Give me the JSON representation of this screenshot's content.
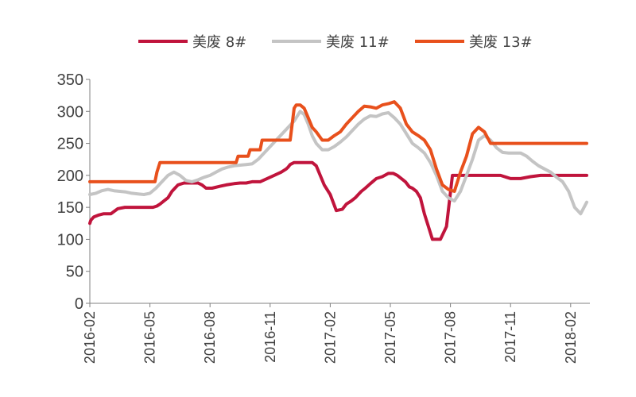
{
  "chart_data": {
    "type": "line",
    "title": "",
    "xlabel": "",
    "ylabel": "",
    "ylim": [
      0,
      350
    ],
    "yticks": [
      0,
      50,
      100,
      150,
      200,
      250,
      300,
      350
    ],
    "xticks": [
      "2016-02",
      "2016-05",
      "2016-08",
      "2016-11",
      "2017-02",
      "2017-05",
      "2017-08",
      "2017-11",
      "2018-02"
    ],
    "grid": false,
    "legend_position": "top",
    "series": [
      {
        "name": "美废 8#",
        "color": "#c0143c",
        "x": [
          0,
          0.05,
          0.2,
          0.45,
          0.7,
          1.05,
          1.4,
          1.75,
          2.1,
          2.45,
          2.8,
          3.15,
          3.35,
          3.5,
          3.7,
          3.9,
          4.1,
          4.4,
          4.7,
          5.1,
          5.4,
          5.6,
          5.8,
          6.1,
          6.5,
          6.8,
          7.2,
          7.5,
          7.8,
          8.1,
          8.5,
          8.85,
          9.2,
          9.55,
          9.8,
          9.9,
          10.0,
          10.2,
          10.5,
          10.8,
          11.1,
          11.3,
          11.5,
          11.7,
          12.0,
          12.3,
          12.6,
          12.8,
          13.05,
          13.25,
          13.4,
          13.55,
          13.75,
          14.0,
          14.3,
          14.6,
          14.9,
          15.15,
          15.35,
          15.55,
          15.75,
          15.95,
          16.1,
          16.3,
          16.5,
          16.7,
          16.9,
          17.1,
          17.3,
          17.5,
          17.8,
          18.1,
          18.5,
          18.9,
          19.3,
          19.7,
          20.0,
          20.5,
          21.0,
          21.5,
          22.0,
          22.5,
          23.0,
          23.5,
          24.0,
          24.5,
          24.8
        ],
        "y": [
          125,
          130,
          135,
          138,
          140,
          140,
          148,
          150,
          150,
          150,
          150,
          150,
          152,
          155,
          160,
          165,
          175,
          185,
          188,
          188,
          188,
          185,
          180,
          180,
          183,
          185,
          187,
          188,
          188,
          190,
          190,
          195,
          200,
          205,
          210,
          213,
          217,
          220,
          220,
          220,
          220,
          215,
          200,
          185,
          170,
          145,
          147,
          155,
          160,
          165,
          170,
          175,
          180,
          187,
          195,
          198,
          203,
          203,
          200,
          195,
          190,
          182,
          180,
          175,
          165,
          140,
          120,
          100,
          100,
          100,
          120,
          200,
          200,
          200,
          200,
          200,
          200,
          200,
          195,
          195,
          198,
          200,
          200,
          200,
          200,
          200,
          200
        ]
      },
      {
        "name": "美废 11#",
        "color": "#c4c4c4",
        "x": [
          0,
          0.3,
          0.6,
          0.9,
          1.2,
          1.5,
          1.8,
          2.1,
          2.4,
          2.7,
          3.0,
          3.3,
          3.6,
          3.9,
          4.2,
          4.5,
          4.8,
          5.1,
          5.4,
          5.7,
          6.0,
          6.3,
          6.6,
          6.9,
          7.2,
          7.5,
          7.8,
          8.1,
          8.4,
          8.7,
          9.0,
          9.3,
          9.6,
          9.9,
          10.2,
          10.5,
          10.7,
          10.9,
          11.1,
          11.3,
          11.6,
          11.9,
          12.2,
          12.5,
          12.8,
          13.1,
          13.4,
          13.7,
          14.0,
          14.3,
          14.6,
          14.9,
          15.2,
          15.5,
          15.8,
          16.1,
          16.4,
          16.7,
          17.0,
          17.3,
          17.6,
          17.9,
          18.2,
          18.5,
          18.8,
          19.1,
          19.4,
          19.7,
          20.0,
          20.3,
          20.6,
          20.9,
          21.2,
          21.5,
          21.8,
          22.1,
          22.4,
          22.7,
          23.0,
          23.3,
          23.6,
          23.9,
          24.2,
          24.5,
          24.8
        ],
        "y": [
          170,
          172,
          176,
          178,
          176,
          175,
          174,
          172,
          171,
          170,
          172,
          180,
          190,
          200,
          205,
          200,
          192,
          190,
          193,
          197,
          200,
          205,
          210,
          213,
          215,
          216,
          217,
          218,
          225,
          235,
          245,
          255,
          265,
          275,
          285,
          300,
          295,
          280,
          262,
          250,
          240,
          240,
          245,
          252,
          260,
          270,
          280,
          288,
          293,
          292,
          296,
          298,
          290,
          280,
          265,
          250,
          243,
          235,
          220,
          200,
          175,
          165,
          160,
          175,
          200,
          225,
          255,
          262,
          255,
          243,
          236,
          235,
          235,
          235,
          230,
          222,
          215,
          210,
          205,
          197,
          190,
          175,
          150,
          140,
          158
        ]
      },
      {
        "name": "美废 13#",
        "color": "#e8501c",
        "x": [
          0,
          3.25,
          3.35,
          3.5,
          4.5,
          5.5,
          6.5,
          7.3,
          7.4,
          7.9,
          8.0,
          8.5,
          8.6,
          9.0,
          9.1,
          9.5,
          10.0,
          10.2,
          10.3,
          10.5,
          10.7,
          10.9,
          11.1,
          11.3,
          11.6,
          11.9,
          12.2,
          12.5,
          12.8,
          13.1,
          13.4,
          13.7,
          14.0,
          14.3,
          14.6,
          14.9,
          15.2,
          15.5,
          15.8,
          16.1,
          16.4,
          16.7,
          17.0,
          17.3,
          17.6,
          17.9,
          18.2,
          18.5,
          18.8,
          19.1,
          19.4,
          19.7,
          20.0,
          20.3,
          20.6,
          21.0,
          22.0,
          23.0,
          24.0,
          24.8
        ],
        "y": [
          190,
          190,
          205,
          220,
          220,
          220,
          220,
          220,
          230,
          230,
          240,
          240,
          255,
          255,
          255,
          255,
          255,
          305,
          310,
          310,
          305,
          290,
          275,
          268,
          255,
          255,
          262,
          268,
          280,
          290,
          300,
          308,
          307,
          305,
          310,
          312,
          315,
          305,
          280,
          268,
          262,
          255,
          240,
          210,
          185,
          178,
          175,
          205,
          230,
          265,
          275,
          268,
          250,
          250,
          250,
          250,
          250,
          250,
          250,
          250
        ]
      }
    ]
  }
}
